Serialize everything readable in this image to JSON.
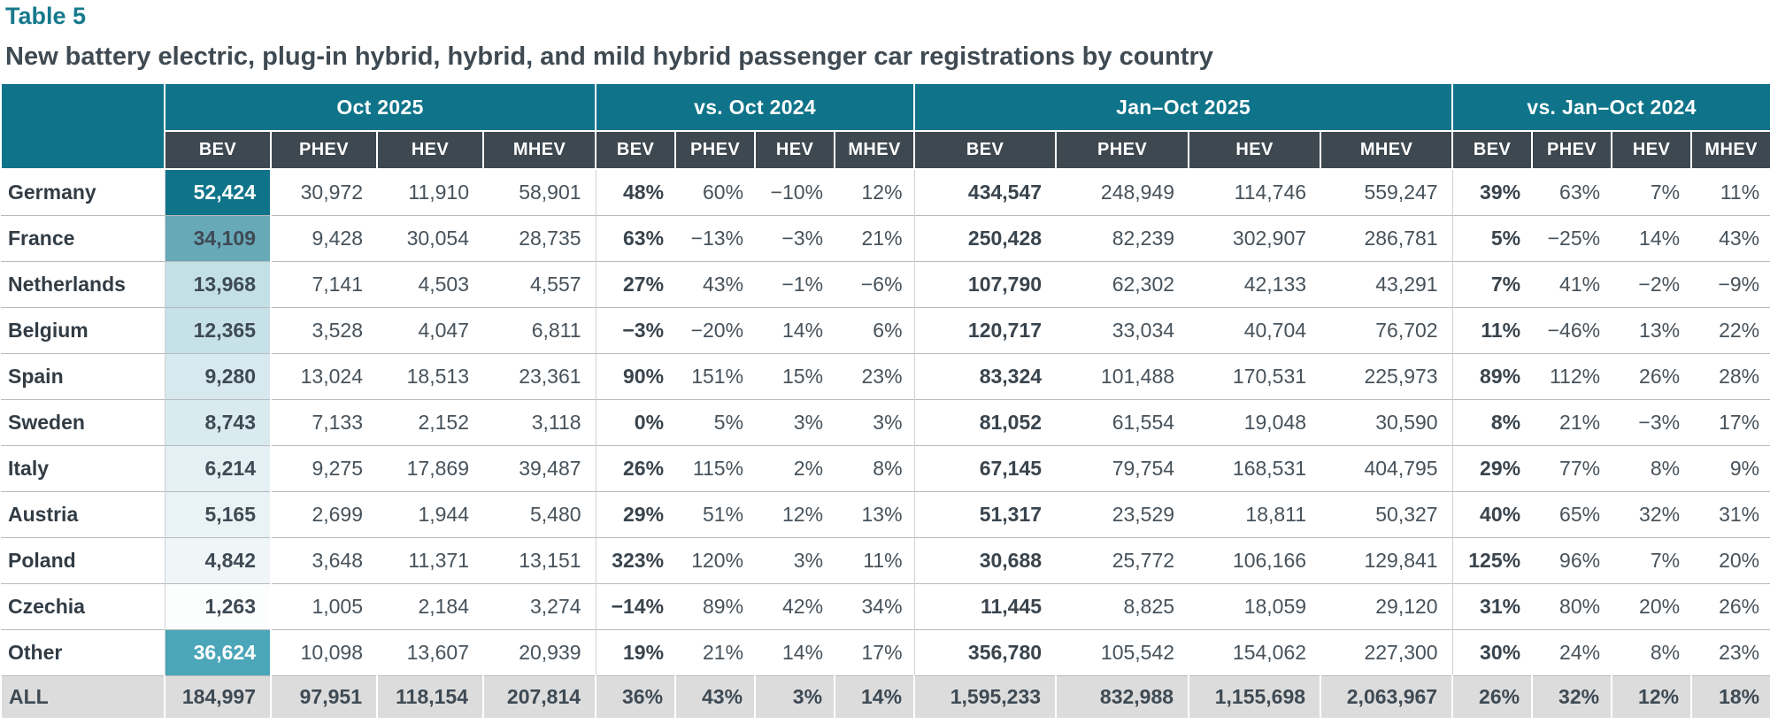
{
  "title": "Table 5",
  "subtitle": "New battery electric, plug-in hybrid, hybrid, and mild hybrid passenger car registrations by country",
  "colors": {
    "accent_teal": "#0F7489",
    "subheader_dark": "#3E4850",
    "title_teal": "#17798C",
    "text_dark": "#3F4A52",
    "all_row_bg": "#DCDCDC",
    "bev_heat_bg": [
      "#0F7489",
      "#68A9B8",
      "#C3E0E6",
      "#C6E1E7",
      "#D7E9EE",
      "#DAEBEF",
      "#E4F0F3",
      "#E9F3F5",
      "#F0F6F8",
      "#FCFDFD",
      "#4AA6B8"
    ],
    "bev_heat_text": [
      "#FFFFFF",
      "#3E4A54",
      "#3E4A54",
      "#3E4A54",
      "#3E4A54",
      "#3E4A54",
      "#3E4A54",
      "#3E4A54",
      "#3E4A54",
      "#3E4A54",
      "#FFFFFF"
    ]
  },
  "chart_data": {
    "type": "table",
    "title": "Table 5",
    "subtitle": "New battery electric, plug-in hybrid, hybrid, and mild hybrid passenger car registrations by country",
    "column_groups": [
      {
        "label": "Oct 2025",
        "key": "oct_2025",
        "columns": [
          "BEV",
          "PHEV",
          "HEV",
          "MHEV"
        ]
      },
      {
        "label": "vs. Oct 2024",
        "key": "vs_oct_2024",
        "columns": [
          "BEV",
          "PHEV",
          "HEV",
          "MHEV"
        ]
      },
      {
        "label": "Jan–Oct 2025",
        "key": "jan_oct_2025",
        "columns": [
          "BEV",
          "PHEV",
          "HEV",
          "MHEV"
        ]
      },
      {
        "label": "vs. Jan–Oct 2024",
        "key": "vs_jan_oct_2024",
        "columns": [
          "BEV",
          "PHEV",
          "HEV",
          "MHEV"
        ]
      }
    ],
    "rows": [
      {
        "country": "Germany",
        "oct_2025": [
          "52,424",
          "30,972",
          "11,910",
          "58,901"
        ],
        "vs_oct_2024": [
          "48%",
          "60%",
          "−10%",
          "12%"
        ],
        "jan_oct_2025": [
          "434,547",
          "248,949",
          "114,746",
          "559,247"
        ],
        "vs_jan_oct_2024": [
          "39%",
          "63%",
          "7%",
          "11%"
        ]
      },
      {
        "country": "France",
        "oct_2025": [
          "34,109",
          "9,428",
          "30,054",
          "28,735"
        ],
        "vs_oct_2024": [
          "63%",
          "−13%",
          "−3%",
          "21%"
        ],
        "jan_oct_2025": [
          "250,428",
          "82,239",
          "302,907",
          "286,781"
        ],
        "vs_jan_oct_2024": [
          "5%",
          "−25%",
          "14%",
          "43%"
        ]
      },
      {
        "country": "Netherlands",
        "oct_2025": [
          "13,968",
          "7,141",
          "4,503",
          "4,557"
        ],
        "vs_oct_2024": [
          "27%",
          "43%",
          "−1%",
          "−6%"
        ],
        "jan_oct_2025": [
          "107,790",
          "62,302",
          "42,133",
          "43,291"
        ],
        "vs_jan_oct_2024": [
          "7%",
          "41%",
          "−2%",
          "−9%"
        ]
      },
      {
        "country": "Belgium",
        "oct_2025": [
          "12,365",
          "3,528",
          "4,047",
          "6,811"
        ],
        "vs_oct_2024": [
          "−3%",
          "−20%",
          "14%",
          "6%"
        ],
        "jan_oct_2025": [
          "120,717",
          "33,034",
          "40,704",
          "76,702"
        ],
        "vs_jan_oct_2024": [
          "11%",
          "−46%",
          "13%",
          "22%"
        ]
      },
      {
        "country": "Spain",
        "oct_2025": [
          "9,280",
          "13,024",
          "18,513",
          "23,361"
        ],
        "vs_oct_2024": [
          "90%",
          "151%",
          "15%",
          "23%"
        ],
        "jan_oct_2025": [
          "83,324",
          "101,488",
          "170,531",
          "225,973"
        ],
        "vs_jan_oct_2024": [
          "89%",
          "112%",
          "26%",
          "28%"
        ]
      },
      {
        "country": "Sweden",
        "oct_2025": [
          "8,743",
          "7,133",
          "2,152",
          "3,118"
        ],
        "vs_oct_2024": [
          "0%",
          "5%",
          "3%",
          "3%"
        ],
        "jan_oct_2025": [
          "81,052",
          "61,554",
          "19,048",
          "30,590"
        ],
        "vs_jan_oct_2024": [
          "8%",
          "21%",
          "−3%",
          "17%"
        ]
      },
      {
        "country": "Italy",
        "oct_2025": [
          "6,214",
          "9,275",
          "17,869",
          "39,487"
        ],
        "vs_oct_2024": [
          "26%",
          "115%",
          "2%",
          "8%"
        ],
        "jan_oct_2025": [
          "67,145",
          "79,754",
          "168,531",
          "404,795"
        ],
        "vs_jan_oct_2024": [
          "29%",
          "77%",
          "8%",
          "9%"
        ]
      },
      {
        "country": "Austria",
        "oct_2025": [
          "5,165",
          "2,699",
          "1,944",
          "5,480"
        ],
        "vs_oct_2024": [
          "29%",
          "51%",
          "12%",
          "13%"
        ],
        "jan_oct_2025": [
          "51,317",
          "23,529",
          "18,811",
          "50,327"
        ],
        "vs_jan_oct_2024": [
          "40%",
          "65%",
          "32%",
          "31%"
        ]
      },
      {
        "country": "Poland",
        "oct_2025": [
          "4,842",
          "3,648",
          "11,371",
          "13,151"
        ],
        "vs_oct_2024": [
          "323%",
          "120%",
          "3%",
          "11%"
        ],
        "jan_oct_2025": [
          "30,688",
          "25,772",
          "106,166",
          "129,841"
        ],
        "vs_jan_oct_2024": [
          "125%",
          "96%",
          "7%",
          "20%"
        ]
      },
      {
        "country": "Czechia",
        "oct_2025": [
          "1,263",
          "1,005",
          "2,184",
          "3,274"
        ],
        "vs_oct_2024": [
          "−14%",
          "89%",
          "42%",
          "34%"
        ],
        "jan_oct_2025": [
          "11,445",
          "8,825",
          "18,059",
          "29,120"
        ],
        "vs_jan_oct_2024": [
          "31%",
          "80%",
          "20%",
          "26%"
        ]
      },
      {
        "country": "Other",
        "oct_2025": [
          "36,624",
          "10,098",
          "13,607",
          "20,939"
        ],
        "vs_oct_2024": [
          "19%",
          "21%",
          "14%",
          "17%"
        ],
        "jan_oct_2025": [
          "356,780",
          "105,542",
          "154,062",
          "227,300"
        ],
        "vs_jan_oct_2024": [
          "30%",
          "24%",
          "8%",
          "23%"
        ]
      }
    ],
    "total_row": {
      "country": "ALL",
      "oct_2025": [
        "184,997",
        "97,951",
        "118,154",
        "207,814"
      ],
      "vs_oct_2024": [
        "36%",
        "43%",
        "3%",
        "14%"
      ],
      "jan_oct_2025": [
        "1,595,233",
        "832,988",
        "1,155,698",
        "2,063,967"
      ],
      "vs_jan_oct_2024": [
        "26%",
        "32%",
        "12%",
        "18%"
      ]
    }
  }
}
